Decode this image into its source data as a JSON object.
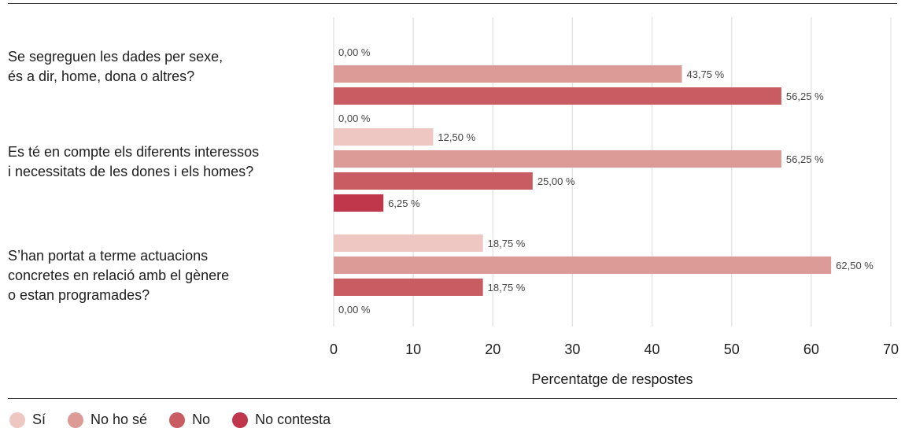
{
  "chart_data": {
    "type": "bar",
    "orientation": "horizontal",
    "categories": [
      [
        "Se segreguen les dades per sexe,",
        "és a dir, home, dona o altres?"
      ],
      [
        "Es té en compte els diferents interessos",
        "i necessitats de les dones i els homes?"
      ],
      [
        "S’han portat a terme actuacions",
        "concretes en relació amb el gènere",
        "o estan programades?"
      ]
    ],
    "series": [
      {
        "name": "Sí",
        "color": "#eec7c2",
        "values": [
          0.0,
          12.5,
          18.75
        ],
        "labels": [
          "0,00 %",
          "12,50 %",
          "18,75 %"
        ]
      },
      {
        "name": "No ho sé",
        "color": "#dd9b97",
        "values": [
          43.75,
          56.25,
          62.5
        ],
        "labels": [
          "43,75 %",
          "56,25 %",
          "62,50  %"
        ]
      },
      {
        "name": "No",
        "color": "#c95c62",
        "values": [
          56.25,
          25.0,
          18.75
        ],
        "labels": [
          "56,25 %",
          "25,00 %",
          "18,75 %"
        ]
      },
      {
        "name": "No contesta",
        "color": "#c0364b",
        "values": [
          0.0,
          6.25,
          0.0
        ],
        "labels": [
          "0,00 %",
          "6,25 %",
          "0,00 %"
        ]
      }
    ],
    "xlabel": "Percentatge de respostes",
    "xlim": [
      0,
      70
    ],
    "xticks": [
      "0",
      "10",
      "20",
      "30",
      "40",
      "50",
      "60",
      "70"
    ],
    "grid": true,
    "legend_position": "bottom-left"
  }
}
